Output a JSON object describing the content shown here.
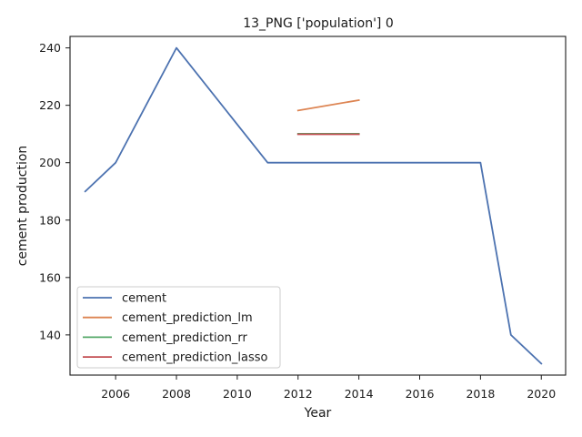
{
  "chart_data": {
    "type": "line",
    "title": "13_PNG ['population'] 0",
    "xlabel": "Year",
    "ylabel": "cement production",
    "xlim": [
      2004.5,
      2020.8
    ],
    "ylim": [
      126,
      244
    ],
    "xticks": [
      2006,
      2008,
      2010,
      2012,
      2014,
      2016,
      2018,
      2020
    ],
    "yticks": [
      140,
      160,
      180,
      200,
      220,
      240
    ],
    "grid": false,
    "legend_position": "lower-left",
    "series": [
      {
        "name": "cement",
        "color": "#4c72b0",
        "x": [
          2005,
          2006,
          2008,
          2011,
          2012,
          2014,
          2018,
          2019,
          2020
        ],
        "y": [
          190,
          200,
          240,
          200,
          200,
          200,
          200,
          140,
          130
        ]
      },
      {
        "name": "cement_prediction_lm",
        "color": "#dd8452",
        "x": [
          2012,
          2014
        ],
        "y": [
          218.2,
          221.8
        ]
      },
      {
        "name": "cement_prediction_rr",
        "color": "#55a868",
        "x": [
          2012,
          2014
        ],
        "y": [
          210.1,
          210.1
        ]
      },
      {
        "name": "cement_prediction_lasso",
        "color": "#c44e52",
        "x": [
          2012,
          2014
        ],
        "y": [
          209.9,
          209.9
        ]
      }
    ]
  }
}
